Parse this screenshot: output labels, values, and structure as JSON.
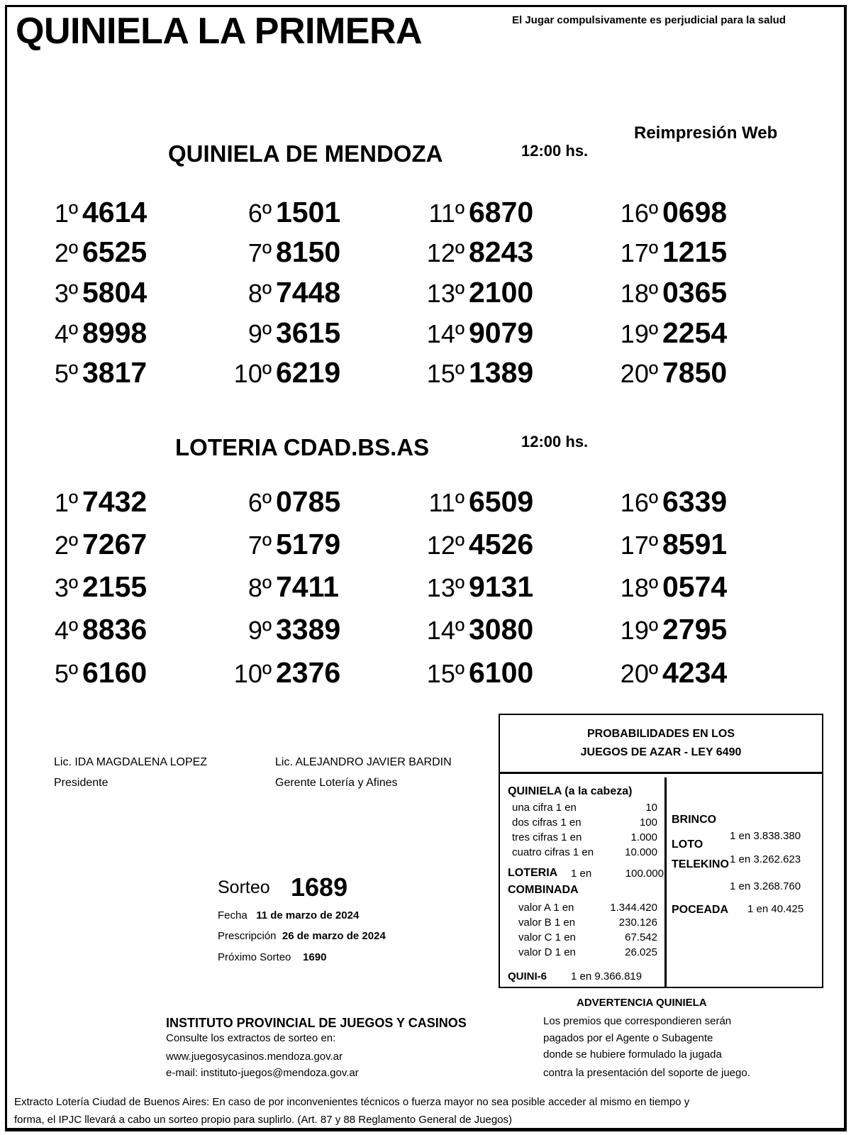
{
  "header": {
    "title": "QUINIELA LA PRIMERA",
    "warning": "El Jugar compulsivamente es perjudicial para la salud",
    "reprint": "Reimpresión Web"
  },
  "draws": [
    {
      "name": "QUINIELA  DE MENDOZA",
      "time": "12:00 hs.",
      "results": [
        [
          "1º",
          "4614"
        ],
        [
          "2º",
          "6525"
        ],
        [
          "3º",
          "5804"
        ],
        [
          "4º",
          "8998"
        ],
        [
          "5º",
          "3817"
        ],
        [
          "6º",
          "1501"
        ],
        [
          "7º",
          "8150"
        ],
        [
          "8º",
          "7448"
        ],
        [
          "9º",
          "3615"
        ],
        [
          "10º",
          "6219"
        ],
        [
          "11º",
          "6870"
        ],
        [
          "12º",
          "8243"
        ],
        [
          "13º",
          "2100"
        ],
        [
          "14º",
          "9079"
        ],
        [
          "15º",
          "1389"
        ],
        [
          "16º",
          "0698"
        ],
        [
          "17º",
          "1215"
        ],
        [
          "18º",
          "0365"
        ],
        [
          "19º",
          "2254"
        ],
        [
          "20º",
          "7850"
        ]
      ]
    },
    {
      "name": "LOTERIA CDAD.BS.AS",
      "time": "12:00 hs.",
      "results": [
        [
          "1º",
          "7432"
        ],
        [
          "2º",
          "7267"
        ],
        [
          "3º",
          "2155"
        ],
        [
          "4º",
          "8836"
        ],
        [
          "5º",
          "6160"
        ],
        [
          "6º",
          "0785"
        ],
        [
          "7º",
          "5179"
        ],
        [
          "8º",
          "7411"
        ],
        [
          "9º",
          "3389"
        ],
        [
          "10º",
          "2376"
        ],
        [
          "11º",
          "6509"
        ],
        [
          "12º",
          "4526"
        ],
        [
          "13º",
          "9131"
        ],
        [
          "14º",
          "3080"
        ],
        [
          "15º",
          "6100"
        ],
        [
          "16º",
          "6339"
        ],
        [
          "17º",
          "8591"
        ],
        [
          "18º",
          "0574"
        ],
        [
          "19º",
          "2795"
        ],
        [
          "20º",
          "4234"
        ]
      ]
    }
  ],
  "signatures": [
    {
      "name": "Lic. IDA MAGDALENA LOPEZ",
      "role": "Presidente"
    },
    {
      "name": "Lic. ALEJANDRO JAVIER BARDIN",
      "role": "Gerente Lotería y Afines"
    }
  ],
  "sorteo": {
    "label": "Sorteo",
    "number": "1689",
    "fecha_label": "Fecha",
    "fecha": "11 de marzo de 2024",
    "prescripcion_label": "Prescripción",
    "prescripcion": "26 de marzo de 2024",
    "proximo_label": "Próximo Sorteo",
    "proximo": "1690"
  },
  "probabilities": {
    "title1": "PROBABILIDADES EN LOS",
    "title2": "JUEGOS DE AZAR - LEY 6490",
    "quiniela_title": "QUINIELA (a la cabeza)",
    "quiniela": [
      [
        "una cifra  1 en",
        "10"
      ],
      [
        "dos cifras 1 en",
        "100"
      ],
      [
        "tres cifras 1 en",
        "1.000"
      ],
      [
        "cuatro cifras 1 en",
        "10.000"
      ]
    ],
    "loteria_label": "LOTERIA",
    "loteria_en": "1 en",
    "loteria_value": "100.000",
    "combinada_title": "COMBINADA",
    "combinada": [
      [
        "valor A 1 en",
        "1.344.420"
      ],
      [
        "valor B 1 en",
        "230.126"
      ],
      [
        "valor C 1 en",
        "67.542"
      ],
      [
        "valor D 1 en",
        "26.025"
      ]
    ],
    "quini6_label": "QUINI-6",
    "quini6_value": "1 en  9.366.819",
    "brinco_label": "BRINCO",
    "brinco_value": "1 en 3.838.380",
    "loto_label": "LOTO",
    "loto_value": "1 en 3.262.623",
    "telekino_label": "TELEKINO",
    "telekino_value": "1 en 3.268.760",
    "poceada_label": "POCEADA",
    "poceada_value": "1 en 40.425"
  },
  "institute": {
    "name": "INSTITUTO PROVINCIAL DE JUEGOS Y CASINOS",
    "consult": "Consulte los extractos de sorteo en:",
    "web": "www.juegosycasinos.mendoza.gov.ar",
    "email": "e-mail:  instituto-juegos@mendoza.gov.ar"
  },
  "advertencia": {
    "title": "ADVERTENCIA QUINIELA",
    "lines": [
      "Los premios que correspondieren serán",
      "pagados por el Agente o Subagente",
      "donde se hubiere formulado la jugada",
      "contra la presentación del soporte de juego."
    ]
  },
  "footer": {
    "line1": "Extracto Lotería Ciudad de Buenos Aires: En caso de por inconvenientes técnicos o fuerza mayor no sea posible acceder al mismo en tiempo y",
    "line2": "forma, el IPJC llevará a cabo un sorteo propio para suplirlo. (Art. 87 y 88 Reglamento General de Juegos)"
  }
}
